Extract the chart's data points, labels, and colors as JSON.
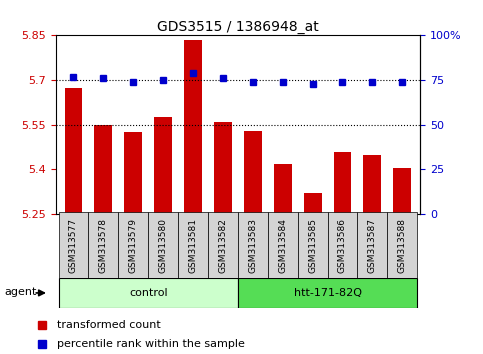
{
  "title": "GDS3515 / 1386948_at",
  "samples": [
    "GSM313577",
    "GSM313578",
    "GSM313579",
    "GSM313580",
    "GSM313581",
    "GSM313582",
    "GSM313583",
    "GSM313584",
    "GSM313585",
    "GSM313586",
    "GSM313587",
    "GSM313588"
  ],
  "bar_values": [
    5.675,
    5.55,
    5.525,
    5.575,
    5.835,
    5.56,
    5.53,
    5.42,
    5.32,
    5.46,
    5.45,
    5.405
  ],
  "percentile_values": [
    77,
    76,
    74,
    75,
    79,
    76,
    74,
    74,
    73,
    74,
    74,
    74
  ],
  "bar_color": "#cc0000",
  "percentile_color": "#0000cc",
  "ymin": 5.25,
  "ymax": 5.85,
  "yticks": [
    5.25,
    5.4,
    5.55,
    5.7,
    5.85
  ],
  "ytick_labels": [
    "5.25",
    "5.4",
    "5.55",
    "5.7",
    "5.85"
  ],
  "y2min": 0,
  "y2max": 100,
  "y2ticks": [
    0,
    25,
    50,
    75,
    100
  ],
  "y2tick_labels": [
    "0",
    "25",
    "50",
    "75",
    "100%"
  ],
  "gridlines_pct": [
    50,
    75
  ],
  "groups": [
    {
      "label": "control",
      "start": 0,
      "end": 5,
      "color": "#ccffcc"
    },
    {
      "label": "htt-171-82Q",
      "start": 6,
      "end": 11,
      "color": "#55dd55"
    }
  ],
  "agent_label": "agent",
  "legend_items": [
    {
      "color": "#cc0000",
      "label": "transformed count"
    },
    {
      "color": "#0000cc",
      "label": "percentile rank within the sample"
    }
  ],
  "bar_width": 0.6,
  "figwidth": 4.83,
  "figheight": 3.54,
  "dpi": 100
}
